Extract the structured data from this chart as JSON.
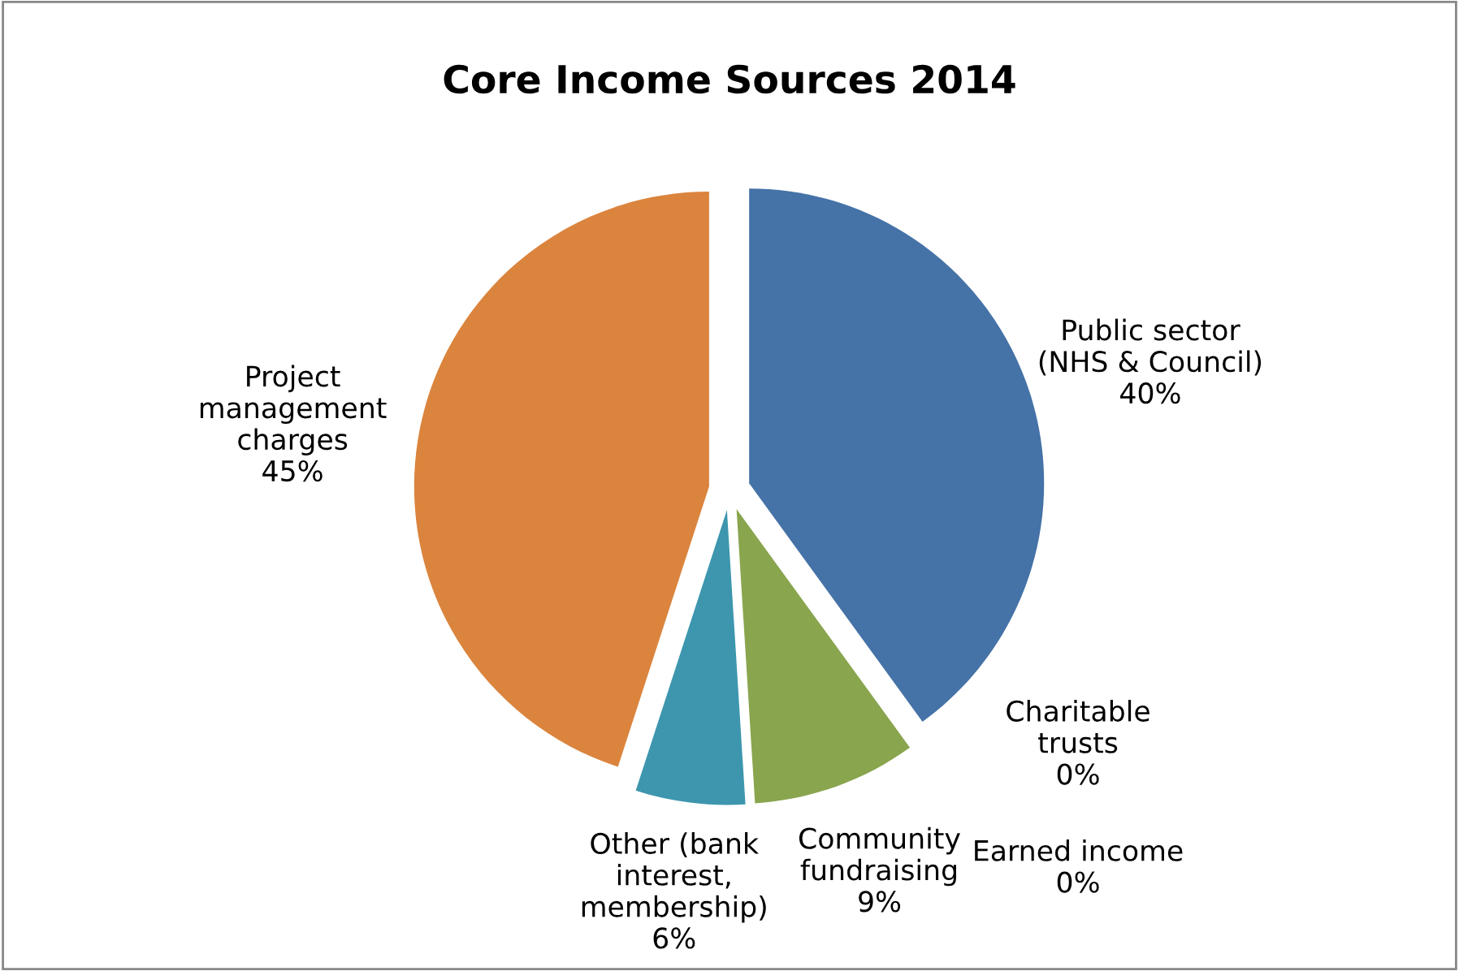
{
  "chart_data": {
    "type": "pie",
    "title": "Core Income Sources 2014",
    "categories": [
      "Public sector\n(NHS & Council)",
      "Charitable\ntrusts",
      "Earned income",
      "Community\nfundraising",
      "Other (bank\ninterest,\nmembership)",
      "Project\nmanagement\ncharges"
    ],
    "values": [
      40,
      0,
      0,
      9,
      6,
      45
    ],
    "colors": [
      "#4572a7",
      "#aa4643",
      "#71588f",
      "#89a54e",
      "#3d96ae",
      "#db843d"
    ],
    "value_labels": [
      "40%",
      "0%",
      "0%",
      "9%",
      "6%",
      "45%"
    ],
    "legend": false
  }
}
